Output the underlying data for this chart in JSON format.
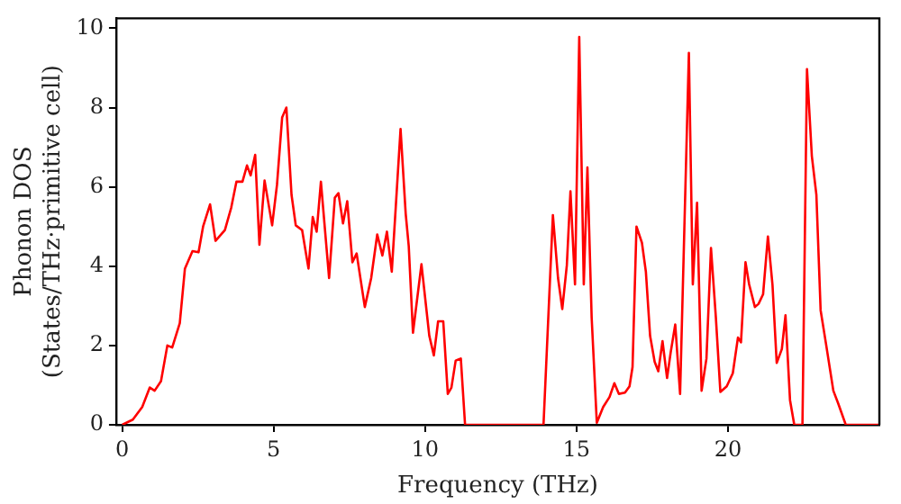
{
  "chart_data": {
    "type": "line",
    "xlabel": "Frequency (THz)",
    "ylabel": "Phonon DOS\n(States/THz·primitive cell)",
    "xlim": [
      -0.2,
      25
    ],
    "ylim": [
      0,
      10.25
    ],
    "xticks": [
      0,
      5,
      10,
      15,
      20
    ],
    "yticks": [
      0,
      2,
      4,
      6,
      8,
      10
    ],
    "grid": false,
    "legend": false,
    "marker": "none",
    "line_style": "solid",
    "x": [
      0,
      0.35,
      0.66,
      0.91,
      1.07,
      1.28,
      1.49,
      1.65,
      1.9,
      2.07,
      2.32,
      2.52,
      2.67,
      2.9,
      3.08,
      3.39,
      3.6,
      3.77,
      3.97,
      4.12,
      4.24,
      4.39,
      4.53,
      4.7,
      4.95,
      5.11,
      5.28,
      5.42,
      5.59,
      5.73,
      5.94,
      6.15,
      6.29,
      6.42,
      6.56,
      6.83,
      7.02,
      7.14,
      7.29,
      7.43,
      7.6,
      7.74,
      8.01,
      8.22,
      8.42,
      8.59,
      8.74,
      8.9,
      9.19,
      9.36,
      9.46,
      9.6,
      9.88,
      10.14,
      10.29,
      10.43,
      10.6,
      10.75,
      10.87,
      11.01,
      11.18,
      11.32,
      13.91,
      14.22,
      14.39,
      14.53,
      14.68,
      14.8,
      14.95,
      15.09,
      15.24,
      15.36,
      15.5,
      15.67,
      15.88,
      16.09,
      16.25,
      16.4,
      16.6,
      16.75,
      16.85,
      16.98,
      17.16,
      17.29,
      17.43,
      17.58,
      17.7,
      17.84,
      17.99,
      18.11,
      18.26,
      18.42,
      18.71,
      18.84,
      18.98,
      19.13,
      19.29,
      19.44,
      19.6,
      19.75,
      19.96,
      20.16,
      20.33,
      20.43,
      20.58,
      20.7,
      20.89,
      21.01,
      21.16,
      21.32,
      21.47,
      21.61,
      21.78,
      21.9,
      22.05,
      22.19,
      22.46,
      22.61,
      22.77,
      22.92,
      23.06,
      23.23,
      23.48,
      23.64,
      23.89,
      24.99
    ],
    "series": [
      {
        "color": "#ff0000",
        "values": [
          0,
          0.13,
          0.45,
          0.94,
          0.86,
          1.1,
          2.0,
          1.95,
          2.56,
          3.94,
          4.38,
          4.35,
          5.0,
          5.56,
          4.64,
          4.91,
          5.48,
          6.13,
          6.13,
          6.54,
          6.29,
          6.81,
          4.54,
          6.16,
          5.03,
          6.05,
          7.75,
          8.0,
          5.8,
          5.03,
          4.91,
          3.94,
          5.24,
          4.87,
          6.13,
          3.7,
          5.73,
          5.84,
          5.08,
          5.64,
          4.1,
          4.32,
          2.97,
          3.7,
          4.8,
          4.27,
          4.87,
          3.86,
          7.46,
          5.32,
          4.51,
          2.32,
          4.05,
          2.24,
          1.75,
          2.61,
          2.61,
          0.78,
          0.94,
          1.62,
          1.67,
          0,
          0,
          5.29,
          3.7,
          2.92,
          4.02,
          5.89,
          3.54,
          9.78,
          3.54,
          6.49,
          2.7,
          0.05,
          0.45,
          0.7,
          1.05,
          0.78,
          0.81,
          0.97,
          1.46,
          5.0,
          4.59,
          3.86,
          2.24,
          1.59,
          1.35,
          2.11,
          1.18,
          1.83,
          2.53,
          0.78,
          9.38,
          3.54,
          5.6,
          0.86,
          1.67,
          4.46,
          2.72,
          0.83,
          0.97,
          1.3,
          2.2,
          2.08,
          4.1,
          3.54,
          2.97,
          3.05,
          3.29,
          4.75,
          3.54,
          1.56,
          1.91,
          2.76,
          0.62,
          0,
          0,
          8.97,
          6.78,
          5.8,
          2.89,
          2.08,
          0.86,
          0.54,
          0,
          0
        ]
      }
    ]
  }
}
